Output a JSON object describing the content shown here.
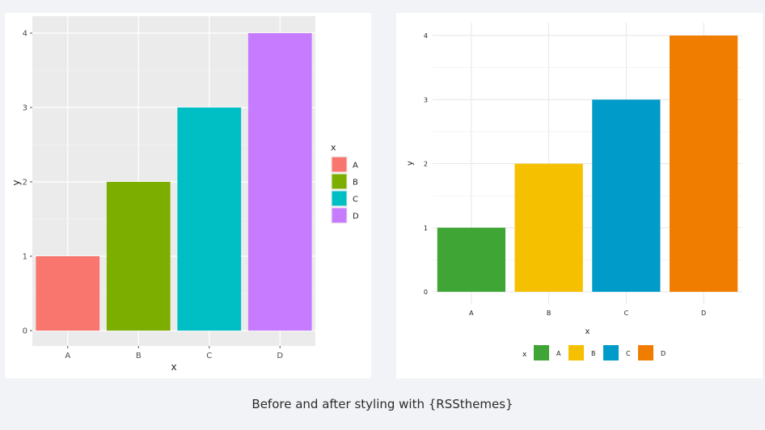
{
  "caption": "Before and after styling with {RSSthemes}",
  "chart_data": [
    {
      "type": "bar",
      "title": "",
      "theme": "ggplot2 default (grey panel)",
      "categories": [
        "A",
        "B",
        "C",
        "D"
      ],
      "values": [
        1,
        2,
        3,
        4
      ],
      "colors": [
        "#f8766d",
        "#7cae00",
        "#00bfc4",
        "#c77cff"
      ],
      "xlabel": "x",
      "ylabel": "y",
      "ylim": [
        0,
        4
      ],
      "yticks": [
        "0",
        "1",
        "2",
        "3",
        "4"
      ],
      "legend": {
        "title": "x",
        "position": "right",
        "labels": [
          "A",
          "B",
          "C",
          "D"
        ]
      }
    },
    {
      "type": "bar",
      "title": "",
      "theme": "RSSthemes (white panel)",
      "categories": [
        "A",
        "B",
        "C",
        "D"
      ],
      "values": [
        1,
        2,
        3,
        4
      ],
      "colors": [
        "#3fa535",
        "#f5c000",
        "#009bc8",
        "#f07d00"
      ],
      "xlabel": "x",
      "ylabel": "y",
      "ylim": [
        0,
        4
      ],
      "yticks": [
        "0",
        "1",
        "2",
        "3",
        "4"
      ],
      "legend": {
        "title": "x",
        "position": "bottom",
        "labels": [
          "A",
          "B",
          "C",
          "D"
        ]
      }
    }
  ]
}
